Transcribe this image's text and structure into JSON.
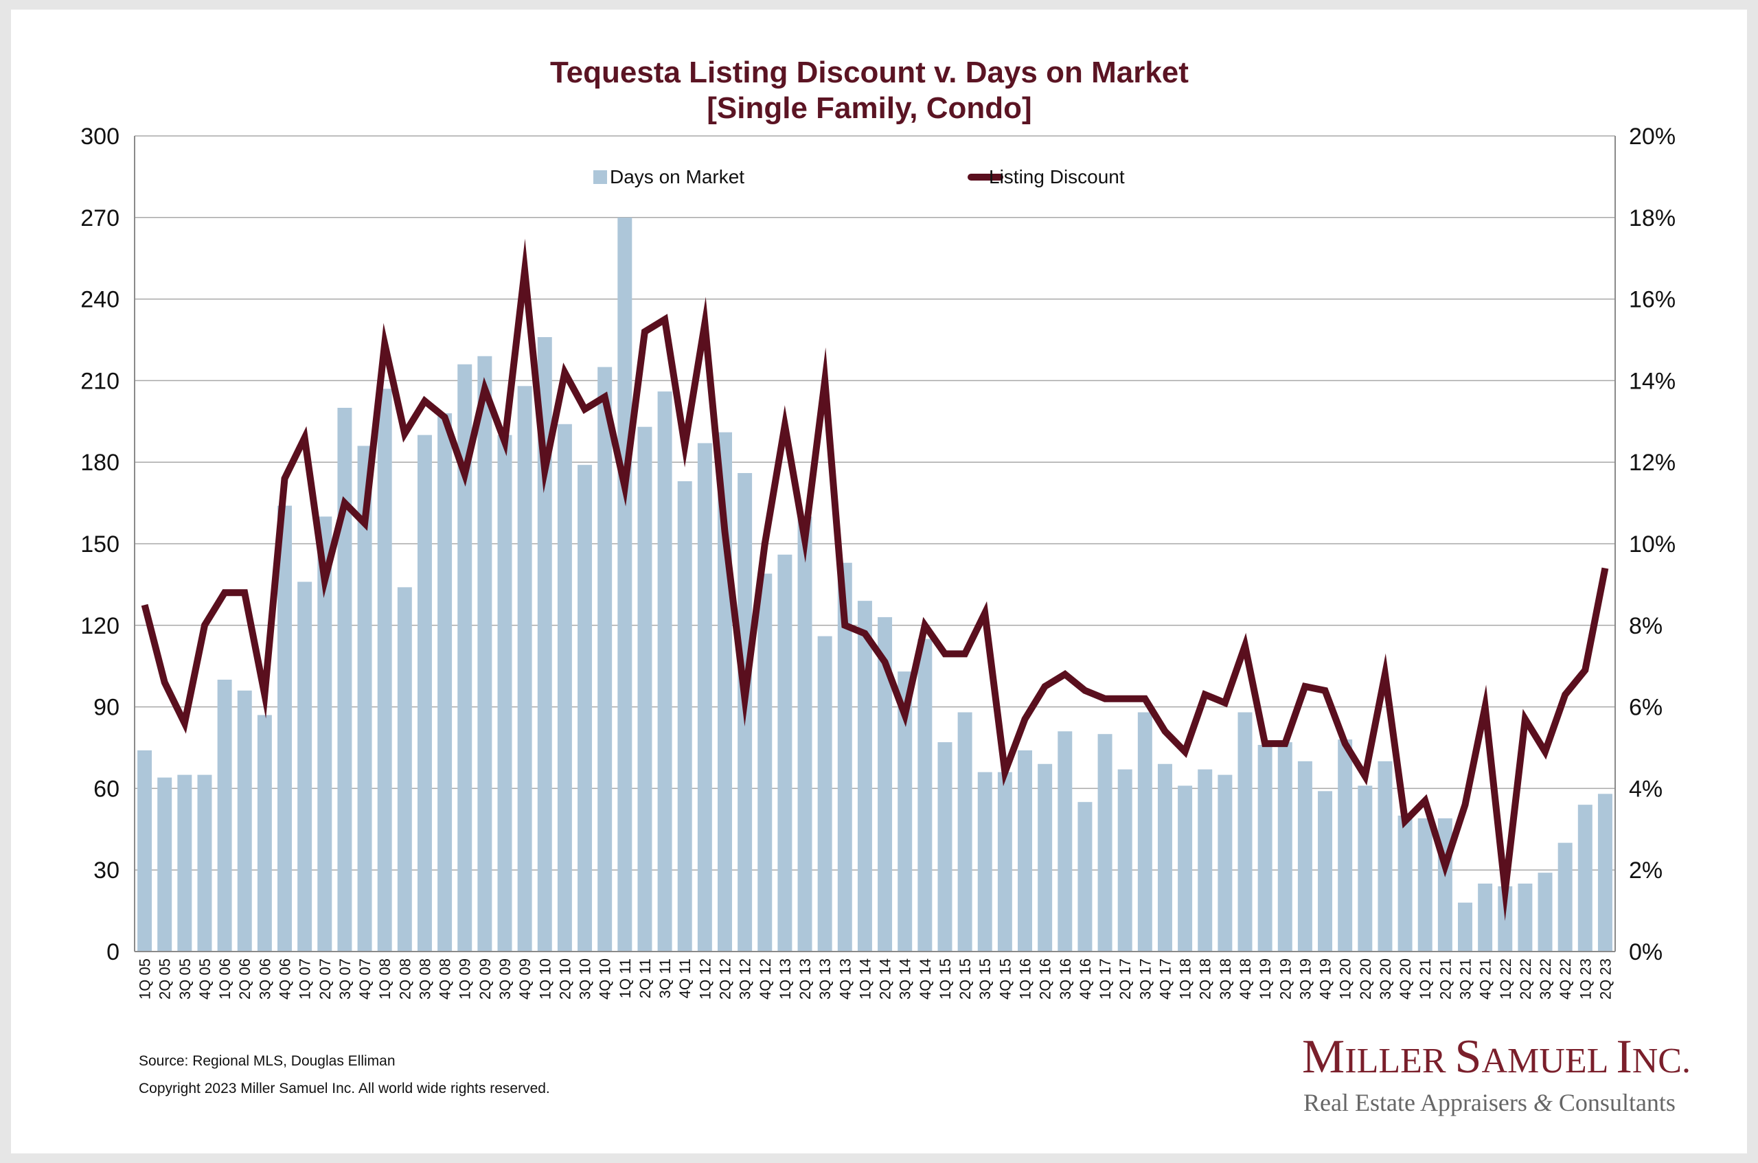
{
  "chart_data": {
    "type": "bar+line",
    "title": "Tequesta Listing Discount v. Days on Market",
    "subtitle": "[Single Family, Condo]",
    "categories": [
      "1Q 05",
      "2Q 05",
      "3Q 05",
      "4Q 05",
      "1Q 06",
      "2Q 06",
      "3Q 06",
      "4Q 06",
      "1Q 07",
      "2Q 07",
      "3Q 07",
      "4Q 07",
      "1Q 08",
      "2Q 08",
      "3Q 08",
      "4Q 08",
      "1Q 09",
      "2Q 09",
      "3Q 09",
      "4Q 09",
      "1Q 10",
      "2Q 10",
      "3Q 10",
      "4Q 10",
      "1Q 11",
      "2Q 11",
      "3Q 11",
      "4Q 11",
      "1Q 12",
      "2Q 12",
      "3Q 12",
      "4Q 12",
      "1Q 13",
      "2Q 13",
      "3Q 13",
      "4Q 13",
      "1Q 14",
      "2Q 14",
      "3Q 14",
      "4Q 14",
      "1Q 15",
      "2Q 15",
      "3Q 15",
      "4Q 15",
      "1Q 16",
      "2Q 16",
      "3Q 16",
      "4Q 16",
      "1Q 17",
      "2Q 17",
      "3Q 17",
      "4Q 17",
      "1Q 18",
      "2Q 18",
      "3Q 18",
      "4Q 18",
      "1Q 19",
      "2Q 19",
      "3Q 19",
      "4Q 19",
      "1Q 20",
      "2Q 20",
      "3Q 20",
      "4Q 20",
      "1Q 21",
      "2Q 21",
      "3Q 21",
      "4Q 21",
      "1Q 22",
      "2Q 22",
      "3Q 22",
      "4Q 22",
      "1Q 23",
      "2Q 23"
    ],
    "series": [
      {
        "name": "Days on Market",
        "type": "bar",
        "axis": "left",
        "color": "#adc6d9",
        "values": [
          74,
          64,
          65,
          65,
          100,
          96,
          87,
          164,
          136,
          160,
          200,
          186,
          207,
          134,
          190,
          198,
          216,
          219,
          190,
          208,
          226,
          194,
          179,
          215,
          270,
          193,
          206,
          173,
          187,
          191,
          176,
          139,
          146,
          160,
          116,
          143,
          129,
          123,
          103,
          115,
          77,
          88,
          66,
          66,
          74,
          69,
          81,
          55,
          80,
          67,
          88,
          69,
          61,
          67,
          65,
          88,
          76,
          77,
          70,
          59,
          78,
          61,
          70,
          50,
          49,
          49,
          18,
          25,
          24,
          25,
          29,
          40,
          54,
          58
        ]
      },
      {
        "name": "Listing Discount",
        "type": "line",
        "axis": "right",
        "color": "#5a0f1e",
        "values": [
          8.5,
          6.6,
          5.6,
          8.0,
          8.8,
          8.8,
          6.3,
          11.6,
          12.6,
          9.1,
          11.0,
          10.5,
          14.9,
          12.7,
          13.5,
          13.1,
          11.7,
          13.8,
          12.5,
          16.7,
          11.8,
          14.2,
          13.3,
          13.6,
          11.4,
          15.2,
          15.5,
          12.4,
          15.4,
          10.3,
          6.2,
          10.0,
          12.9,
          10.1,
          14.0,
          8.0,
          7.8,
          7.1,
          5.8,
          8.0,
          7.3,
          7.3,
          8.3,
          4.4,
          5.7,
          6.5,
          6.8,
          6.4,
          6.2,
          6.2,
          6.2,
          5.4,
          4.9,
          6.3,
          6.1,
          7.5,
          5.1,
          5.1,
          6.5,
          6.4,
          5.1,
          4.3,
          6.8,
          3.2,
          3.7,
          2.1,
          3.6,
          6.0,
          1.5,
          5.7,
          4.9,
          6.3,
          6.9,
          9.4
        ]
      }
    ],
    "y_left": {
      "min": 0,
      "max": 300,
      "step": 30,
      "ticks": [
        "0",
        "30",
        "60",
        "90",
        "120",
        "150",
        "180",
        "210",
        "240",
        "270",
        "300"
      ]
    },
    "y_right": {
      "min": 0,
      "max": 20,
      "step": 2,
      "ticks": [
        "0%",
        "2%",
        "4%",
        "6%",
        "8%",
        "10%",
        "12%",
        "14%",
        "16%",
        "18%",
        "20%"
      ]
    },
    "grid": true,
    "legend_position": "top-center"
  },
  "footer": {
    "source": "Source: Regional MLS, Douglas Elliman",
    "copyright": "Copyright 2023 Miller Samuel Inc.  All world wide rights reserved."
  },
  "logo": {
    "name": "Miller Samuel Inc.",
    "tagline": "Real Estate Appraisers & Consultants"
  }
}
